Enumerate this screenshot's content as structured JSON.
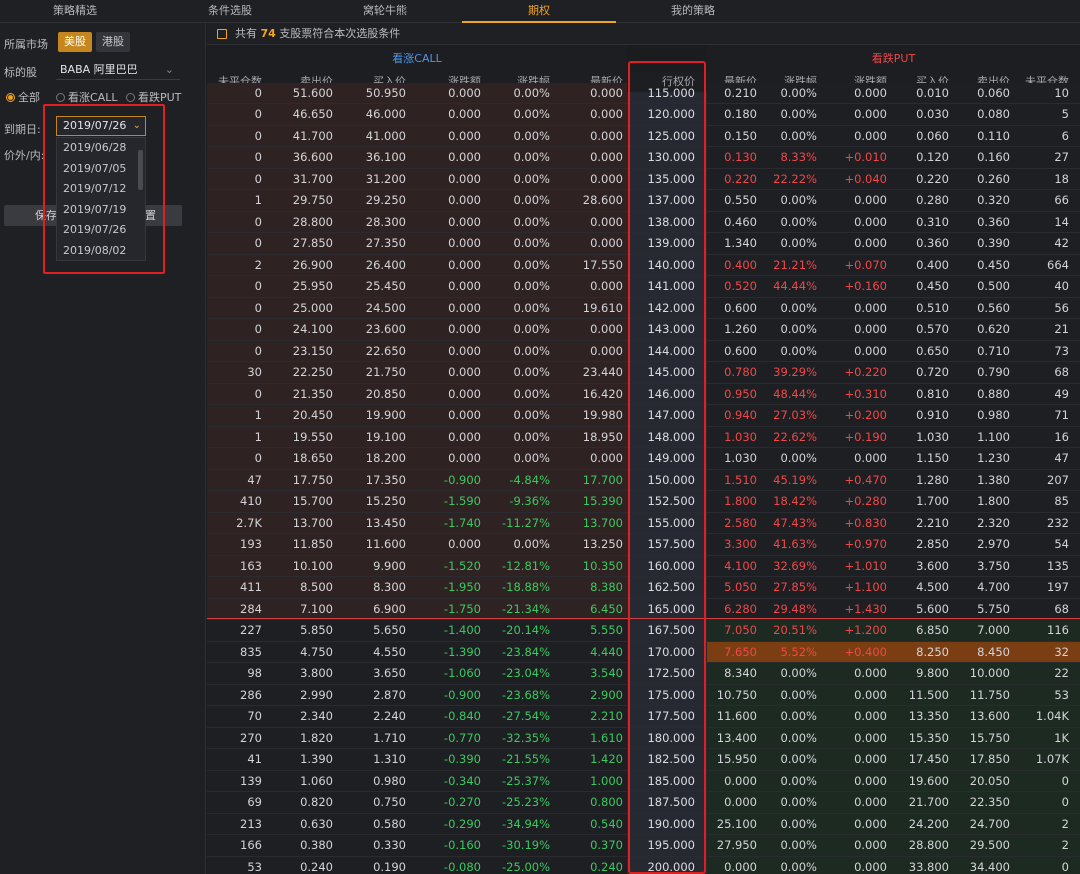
{
  "nav": {
    "tabs": [
      "策略精选",
      "条件选股",
      "窝轮牛熊",
      "期权",
      "我的策略"
    ],
    "active": 3
  },
  "sidebar": {
    "market_label": "所属市场",
    "market_us": "美股",
    "market_hk": "港股",
    "stock_label": "标的股",
    "stock_value": "BABA 阿里巴巴",
    "radio_all": "全部",
    "radio_call": "看涨CALL",
    "radio_put": "看跌PUT",
    "expiry_label": "到期日:",
    "expiry_value": "2019/07/26",
    "expiry_options": [
      "2019/06/28",
      "2019/07/05",
      "2019/07/12",
      "2019/07/19",
      "2019/07/26",
      "2019/08/02"
    ],
    "moneyness_label": "价外/内:",
    "save_label": "保存",
    "reset_label": "重置"
  },
  "summary": {
    "prefix": "共有",
    "count": "74",
    "suffix": "支股票符合本次选股条件"
  },
  "call_header": "看涨CALL",
  "put_header": "看跌PUT",
  "columns": [
    "未平仓数",
    "卖出价",
    "买入价",
    "涨跌额",
    "涨跌幅",
    "最新价",
    "行权价",
    "最新价",
    "涨跌幅",
    "涨跌额",
    "买入价",
    "卖出价",
    "未平仓数"
  ],
  "colors": {
    "accent": "#f0a520",
    "up": "#f04848",
    "down": "#3cc860",
    "call": "#4d96e8",
    "alert_box": "#e02020"
  },
  "rows": [
    [
      "0",
      "51.600",
      "50.950",
      "0.000",
      "0.00%",
      "0.000",
      "115.000",
      "0.210",
      "0.00%",
      "0.000",
      "0.010",
      "0.060",
      "10"
    ],
    [
      "0",
      "46.650",
      "46.000",
      "0.000",
      "0.00%",
      "0.000",
      "120.000",
      "0.180",
      "0.00%",
      "0.000",
      "0.030",
      "0.080",
      "5"
    ],
    [
      "0",
      "41.700",
      "41.000",
      "0.000",
      "0.00%",
      "0.000",
      "125.000",
      "0.150",
      "0.00%",
      "0.000",
      "0.060",
      "0.110",
      "6"
    ],
    [
      "0",
      "36.600",
      "36.100",
      "0.000",
      "0.00%",
      "0.000",
      "130.000",
      "0.130",
      "8.33%",
      "+0.010",
      "0.120",
      "0.160",
      "27"
    ],
    [
      "0",
      "31.700",
      "31.200",
      "0.000",
      "0.00%",
      "0.000",
      "135.000",
      "0.220",
      "22.22%",
      "+0.040",
      "0.220",
      "0.260",
      "18"
    ],
    [
      "1",
      "29.750",
      "29.250",
      "0.000",
      "0.00%",
      "28.600",
      "137.000",
      "0.550",
      "0.00%",
      "0.000",
      "0.280",
      "0.320",
      "66"
    ],
    [
      "0",
      "28.800",
      "28.300",
      "0.000",
      "0.00%",
      "0.000",
      "138.000",
      "0.460",
      "0.00%",
      "0.000",
      "0.310",
      "0.360",
      "14"
    ],
    [
      "0",
      "27.850",
      "27.350",
      "0.000",
      "0.00%",
      "0.000",
      "139.000",
      "1.340",
      "0.00%",
      "0.000",
      "0.360",
      "0.390",
      "42"
    ],
    [
      "2",
      "26.900",
      "26.400",
      "0.000",
      "0.00%",
      "17.550",
      "140.000",
      "0.400",
      "21.21%",
      "+0.070",
      "0.400",
      "0.450",
      "664"
    ],
    [
      "0",
      "25.950",
      "25.450",
      "0.000",
      "0.00%",
      "0.000",
      "141.000",
      "0.520",
      "44.44%",
      "+0.160",
      "0.450",
      "0.500",
      "40"
    ],
    [
      "0",
      "25.000",
      "24.500",
      "0.000",
      "0.00%",
      "19.610",
      "142.000",
      "0.600",
      "0.00%",
      "0.000",
      "0.510",
      "0.560",
      "56"
    ],
    [
      "0",
      "24.100",
      "23.600",
      "0.000",
      "0.00%",
      "0.000",
      "143.000",
      "1.260",
      "0.00%",
      "0.000",
      "0.570",
      "0.620",
      "21"
    ],
    [
      "0",
      "23.150",
      "22.650",
      "0.000",
      "0.00%",
      "0.000",
      "144.000",
      "0.600",
      "0.00%",
      "0.000",
      "0.650",
      "0.710",
      "73"
    ],
    [
      "30",
      "22.250",
      "21.750",
      "0.000",
      "0.00%",
      "23.440",
      "145.000",
      "0.780",
      "39.29%",
      "+0.220",
      "0.720",
      "0.790",
      "68"
    ],
    [
      "0",
      "21.350",
      "20.850",
      "0.000",
      "0.00%",
      "16.420",
      "146.000",
      "0.950",
      "48.44%",
      "+0.310",
      "0.810",
      "0.880",
      "49"
    ],
    [
      "1",
      "20.450",
      "19.900",
      "0.000",
      "0.00%",
      "19.980",
      "147.000",
      "0.940",
      "27.03%",
      "+0.200",
      "0.910",
      "0.980",
      "71"
    ],
    [
      "1",
      "19.550",
      "19.100",
      "0.000",
      "0.00%",
      "18.950",
      "148.000",
      "1.030",
      "22.62%",
      "+0.190",
      "1.030",
      "1.100",
      "16"
    ],
    [
      "0",
      "18.650",
      "18.200",
      "0.000",
      "0.00%",
      "0.000",
      "149.000",
      "1.030",
      "0.00%",
      "0.000",
      "1.150",
      "1.230",
      "47"
    ],
    [
      "47",
      "17.750",
      "17.350",
      "-0.900",
      "-4.84%",
      "17.700",
      "150.000",
      "1.510",
      "45.19%",
      "+0.470",
      "1.280",
      "1.380",
      "207"
    ],
    [
      "410",
      "15.700",
      "15.250",
      "-1.590",
      "-9.36%",
      "15.390",
      "152.500",
      "1.800",
      "18.42%",
      "+0.280",
      "1.700",
      "1.800",
      "85"
    ],
    [
      "2.7K",
      "13.700",
      "13.450",
      "-1.740",
      "-11.27%",
      "13.700",
      "155.000",
      "2.580",
      "47.43%",
      "+0.830",
      "2.210",
      "2.320",
      "232"
    ],
    [
      "193",
      "11.850",
      "11.600",
      "0.000",
      "0.00%",
      "13.250",
      "157.500",
      "3.300",
      "41.63%",
      "+0.970",
      "2.850",
      "2.970",
      "54"
    ],
    [
      "163",
      "10.100",
      "9.900",
      "-1.520",
      "-12.81%",
      "10.350",
      "160.000",
      "4.100",
      "32.69%",
      "+1.010",
      "3.600",
      "3.750",
      "135"
    ],
    [
      "411",
      "8.500",
      "8.300",
      "-1.950",
      "-18.88%",
      "8.380",
      "162.500",
      "5.050",
      "27.85%",
      "+1.100",
      "4.500",
      "4.700",
      "197"
    ],
    [
      "284",
      "7.100",
      "6.900",
      "-1.750",
      "-21.34%",
      "6.450",
      "165.000",
      "6.280",
      "29.48%",
      "+1.430",
      "5.600",
      "5.750",
      "68"
    ],
    [
      "227",
      "5.850",
      "5.650",
      "-1.400",
      "-20.14%",
      "5.550",
      "167.500",
      "7.050",
      "20.51%",
      "+1.200",
      "6.850",
      "7.000",
      "116"
    ],
    [
      "835",
      "4.750",
      "4.550",
      "-1.390",
      "-23.84%",
      "4.440",
      "170.000",
      "7.650",
      "5.52%",
      "+0.400",
      "8.250",
      "8.450",
      "32"
    ],
    [
      "98",
      "3.800",
      "3.650",
      "-1.060",
      "-23.04%",
      "3.540",
      "172.500",
      "8.340",
      "0.00%",
      "0.000",
      "9.800",
      "10.000",
      "22"
    ],
    [
      "286",
      "2.990",
      "2.870",
      "-0.900",
      "-23.68%",
      "2.900",
      "175.000",
      "10.750",
      "0.00%",
      "0.000",
      "11.500",
      "11.750",
      "53"
    ],
    [
      "70",
      "2.340",
      "2.240",
      "-0.840",
      "-27.54%",
      "2.210",
      "177.500",
      "11.600",
      "0.00%",
      "0.000",
      "13.350",
      "13.600",
      "1.04K"
    ],
    [
      "270",
      "1.820",
      "1.710",
      "-0.770",
      "-32.35%",
      "1.610",
      "180.000",
      "13.400",
      "0.00%",
      "0.000",
      "15.350",
      "15.750",
      "1K"
    ],
    [
      "41",
      "1.390",
      "1.310",
      "-0.390",
      "-21.55%",
      "1.420",
      "182.500",
      "15.950",
      "0.00%",
      "0.000",
      "17.450",
      "17.850",
      "1.07K"
    ],
    [
      "139",
      "1.060",
      "0.980",
      "-0.340",
      "-25.37%",
      "1.000",
      "185.000",
      "0.000",
      "0.00%",
      "0.000",
      "19.600",
      "20.050",
      "0"
    ],
    [
      "69",
      "0.820",
      "0.750",
      "-0.270",
      "-25.23%",
      "0.800",
      "187.500",
      "0.000",
      "0.00%",
      "0.000",
      "21.700",
      "22.350",
      "0"
    ],
    [
      "213",
      "0.630",
      "0.580",
      "-0.290",
      "-34.94%",
      "0.540",
      "190.000",
      "25.100",
      "0.00%",
      "0.000",
      "24.200",
      "24.700",
      "2"
    ],
    [
      "166",
      "0.380",
      "0.330",
      "-0.160",
      "-30.19%",
      "0.370",
      "195.000",
      "27.950",
      "0.00%",
      "0.000",
      "28.800",
      "29.500",
      "2"
    ],
    [
      "53",
      "0.240",
      "0.190",
      "-0.080",
      "-25.00%",
      "0.240",
      "200.000",
      "0.000",
      "0.00%",
      "0.000",
      "33.800",
      "34.400",
      "0"
    ]
  ]
}
